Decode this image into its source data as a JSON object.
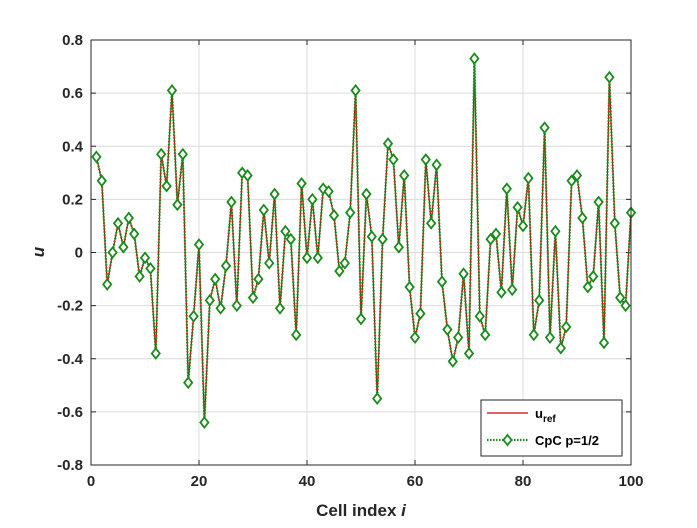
{
  "chart_data": {
    "type": "line",
    "title": "",
    "xlabel": "Cell index",
    "xlabel_var": "i",
    "ylabel": "u",
    "xlim": [
      0,
      100
    ],
    "ylim": [
      -0.8,
      0.8
    ],
    "xticks": [
      0,
      20,
      40,
      60,
      80,
      100
    ],
    "xtick_labels": [
      "0",
      "20",
      "40",
      "60",
      "80",
      "100"
    ],
    "yticks": [
      -0.8,
      -0.6,
      -0.4,
      -0.2,
      0,
      0.2,
      0.4,
      0.6,
      0.8
    ],
    "ytick_labels": [
      "-0.8",
      "-0.6",
      "-0.4",
      "-0.2",
      "0",
      "0.2",
      "0.4",
      "0.6",
      "0.8"
    ],
    "grid": true,
    "legend_position": "bottom-right",
    "x": [
      1,
      2,
      3,
      4,
      5,
      6,
      7,
      8,
      9,
      10,
      11,
      12,
      13,
      14,
      15,
      16,
      17,
      18,
      19,
      20,
      21,
      22,
      23,
      24,
      25,
      26,
      27,
      28,
      29,
      30,
      31,
      32,
      33,
      34,
      35,
      36,
      37,
      38,
      39,
      40,
      41,
      42,
      43,
      44,
      45,
      46,
      47,
      48,
      49,
      50,
      51,
      52,
      53,
      54,
      55,
      56,
      57,
      58,
      59,
      60,
      61,
      62,
      63,
      64,
      65,
      66,
      67,
      68,
      69,
      70,
      71,
      72,
      73,
      74,
      75,
      76,
      77,
      78,
      79,
      80,
      81,
      82,
      83,
      84,
      85,
      86,
      87,
      88,
      89,
      90,
      91,
      92,
      93,
      94,
      95,
      96,
      97,
      98,
      99,
      100
    ],
    "series": [
      {
        "name": "u",
        "name_sub": "ref",
        "color": "#d40000",
        "style": "solid",
        "marker": "none",
        "values": [
          0.36,
          0.27,
          -0.12,
          0.0,
          0.11,
          0.02,
          0.13,
          0.07,
          -0.09,
          -0.02,
          -0.06,
          -0.38,
          0.37,
          0.25,
          0.61,
          0.18,
          0.37,
          -0.49,
          -0.24,
          0.03,
          -0.64,
          -0.18,
          -0.1,
          -0.21,
          -0.05,
          0.19,
          -0.2,
          0.3,
          0.29,
          -0.17,
          -0.1,
          0.16,
          -0.04,
          0.22,
          -0.21,
          0.08,
          0.05,
          -0.31,
          0.26,
          -0.02,
          0.2,
          -0.02,
          0.24,
          0.23,
          0.14,
          -0.07,
          -0.04,
          0.15,
          0.61,
          -0.25,
          0.22,
          0.06,
          -0.55,
          0.05,
          0.41,
          0.35,
          0.02,
          0.29,
          -0.13,
          -0.32,
          -0.23,
          0.35,
          0.11,
          0.33,
          -0.11,
          -0.29,
          -0.41,
          -0.32,
          -0.08,
          -0.38,
          0.73,
          -0.24,
          -0.31,
          0.05,
          0.07,
          -0.15,
          0.24,
          -0.14,
          0.17,
          0.1,
          0.28,
          -0.31,
          -0.18,
          0.47,
          -0.32,
          0.08,
          -0.36,
          -0.28,
          0.27,
          0.29,
          0.13,
          -0.13,
          -0.09,
          0.19,
          -0.34,
          0.66,
          0.11,
          -0.17,
          -0.2,
          0.15
        ]
      },
      {
        "name": "CpC p=1/2",
        "color": "#1a8a1a",
        "style": "dotted",
        "marker": "diamond",
        "values": [
          0.36,
          0.27,
          -0.12,
          0.0,
          0.11,
          0.02,
          0.13,
          0.07,
          -0.09,
          -0.02,
          -0.06,
          -0.38,
          0.37,
          0.25,
          0.61,
          0.18,
          0.37,
          -0.49,
          -0.24,
          0.03,
          -0.64,
          -0.18,
          -0.1,
          -0.21,
          -0.05,
          0.19,
          -0.2,
          0.3,
          0.29,
          -0.17,
          -0.1,
          0.16,
          -0.04,
          0.22,
          -0.21,
          0.08,
          0.05,
          -0.31,
          0.26,
          -0.02,
          0.2,
          -0.02,
          0.24,
          0.23,
          0.14,
          -0.07,
          -0.04,
          0.15,
          0.61,
          -0.25,
          0.22,
          0.06,
          -0.55,
          0.05,
          0.41,
          0.35,
          0.02,
          0.29,
          -0.13,
          -0.32,
          -0.23,
          0.35,
          0.11,
          0.33,
          -0.11,
          -0.29,
          -0.41,
          -0.32,
          -0.08,
          -0.38,
          0.73,
          -0.24,
          -0.31,
          0.05,
          0.07,
          -0.15,
          0.24,
          -0.14,
          0.17,
          0.1,
          0.28,
          -0.31,
          -0.18,
          0.47,
          -0.32,
          0.08,
          -0.36,
          -0.28,
          0.27,
          0.29,
          0.13,
          -0.13,
          -0.09,
          0.19,
          -0.34,
          0.66,
          0.11,
          -0.17,
          -0.2,
          0.15
        ]
      }
    ]
  }
}
